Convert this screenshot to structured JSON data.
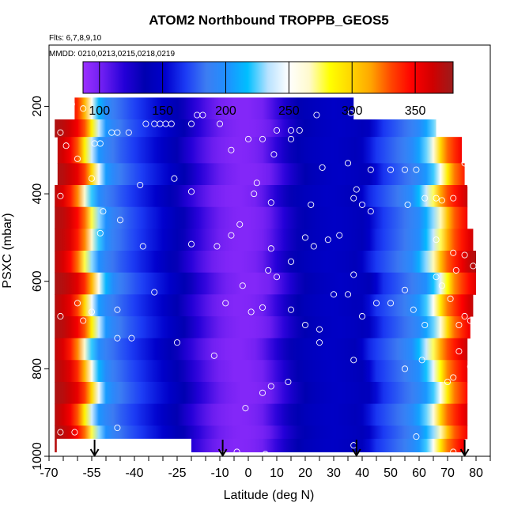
{
  "chart_data": {
    "type": "heatmap",
    "title": "ATOM2 Northbound TROPPB_GEOS5",
    "flights_note": "Flts: 6,7,8,9,10",
    "dates_note": "MMDD: 0210,0213,0215,0218,0219",
    "xlabel": "Latitude (deg N)",
    "ylabel": "PSXC (mbar)",
    "xlim": [
      -70,
      85
    ],
    "ylim": [
      1000,
      60
    ],
    "x_ticks": [
      -70,
      -55,
      -40,
      -25,
      -10,
      0,
      10,
      20,
      30,
      40,
      50,
      60,
      70,
      80
    ],
    "x_minor_step": 5,
    "y_ticks": [
      200,
      400,
      600,
      800,
      1000
    ],
    "colorbar": {
      "range": [
        87,
        380
      ],
      "ticks": [
        100,
        150,
        200,
        250,
        300,
        350
      ],
      "colors": [
        "#9b30ff",
        "#6a1df0",
        "#2400d8",
        "#0000b0",
        "#0000cd",
        "#1c3cf5",
        "#3d7df2",
        "#1e90ff",
        "#00bfff",
        "#b8e2ff",
        "#ffffff",
        "#fffacd",
        "#ffff00",
        "#ffd700",
        "#ffa500",
        "#ff4500",
        "#ff0000",
        "#d00000",
        "#9b1c1c"
      ]
    },
    "colorbar_segment_edges": [
      100,
      150,
      200,
      250,
      300,
      350
    ],
    "profile": {
      "lat": [
        -70,
        -66,
        -62,
        -58,
        -55,
        -52,
        -48,
        -44,
        -40,
        -36,
        -32,
        -28,
        -24,
        -20,
        -15,
        -10,
        -5,
        0,
        5,
        10,
        15,
        20,
        25,
        30,
        35,
        40,
        45,
        50,
        55,
        60,
        64,
        66,
        70,
        75,
        80,
        85
      ],
      "value": [
        375,
        370,
        355,
        320,
        255,
        205,
        188,
        178,
        170,
        162,
        155,
        145,
        135,
        122,
        110,
        100,
        95,
        95,
        100,
        115,
        130,
        140,
        145,
        148,
        145,
        140,
        165,
        175,
        185,
        200,
        230,
        260,
        320,
        345,
        372,
        378
      ]
    },
    "region": {
      "lat_min": -67,
      "lat_max": 80,
      "p_top": 180,
      "p_bottom": 990
    },
    "top_notch": {
      "lat_min": 35,
      "lat_max": 70,
      "p_top": 180,
      "p_bottom": 245
    },
    "white_gap": {
      "lat_min": -67,
      "lat_max": -20,
      "p_top": 960,
      "p_bottom": 1000
    },
    "bands_p": [
      180,
      230,
      270,
      330,
      380,
      430,
      480,
      530,
      580,
      630,
      680,
      730,
      780,
      830,
      880,
      930,
      960,
      990
    ],
    "band_offsets": [
      0,
      1.5,
      -1,
      2,
      -2,
      1,
      0.5,
      -1.5,
      2.5,
      -0.5,
      1.5,
      -2,
      0,
      2,
      -1,
      1,
      -0.5
    ],
    "band_lat_edges": [
      [
        -61,
        37
      ],
      [
        -68,
        66
      ],
      [
        -67,
        75
      ],
      [
        -67,
        76
      ],
      [
        -68,
        77
      ],
      [
        -68,
        77
      ],
      [
        -68,
        79
      ],
      [
        -68,
        80
      ],
      [
        -68,
        80
      ],
      [
        -68,
        79
      ],
      [
        -68,
        78
      ],
      [
        -68,
        77
      ],
      [
        -68,
        77
      ],
      [
        -68,
        77
      ],
      [
        -68,
        77
      ],
      [
        -68,
        77
      ],
      [
        -68,
        76
      ]
    ],
    "samples": [
      [
        -62,
        195
      ],
      [
        -58,
        205
      ],
      [
        -68,
        220
      ],
      [
        -70,
        240
      ],
      [
        -66,
        260
      ],
      [
        -64,
        290
      ],
      [
        -60,
        320
      ],
      [
        -54,
        285
      ],
      [
        -52,
        285
      ],
      [
        -48,
        260
      ],
      [
        -46,
        260
      ],
      [
        -42,
        260
      ],
      [
        -36,
        240
      ],
      [
        -33,
        240
      ],
      [
        -31,
        240
      ],
      [
        -29,
        240
      ],
      [
        -27,
        240
      ],
      [
        -20,
        240
      ],
      [
        -18,
        220
      ],
      [
        -16,
        220
      ],
      [
        -10,
        240
      ],
      [
        -6,
        300
      ],
      [
        0,
        275
      ],
      [
        5,
        275
      ],
      [
        9,
        310
      ],
      [
        10,
        255
      ],
      [
        15,
        255
      ],
      [
        15,
        275
      ],
      [
        18,
        255
      ],
      [
        24,
        220
      ],
      [
        36,
        215
      ],
      [
        -55,
        365
      ],
      [
        -66,
        405
      ],
      [
        -38,
        380
      ],
      [
        -26,
        365
      ],
      [
        -20,
        395
      ],
      [
        2,
        400
      ],
      [
        8,
        420
      ],
      [
        22,
        425
      ],
      [
        26,
        340
      ],
      [
        35,
        330
      ],
      [
        38,
        390
      ],
      [
        40,
        425
      ],
      [
        43,
        345
      ],
      [
        50,
        345
      ],
      [
        55,
        345
      ],
      [
        59,
        345
      ],
      [
        66,
        410
      ],
      [
        68,
        415
      ],
      [
        72,
        410
      ],
      [
        76,
        330
      ],
      [
        78,
        380
      ],
      [
        -51,
        440
      ],
      [
        -45,
        460
      ],
      [
        -52,
        490
      ],
      [
        -37,
        520
      ],
      [
        -20,
        515
      ],
      [
        -11,
        520
      ],
      [
        -6,
        495
      ],
      [
        -3,
        470
      ],
      [
        3,
        375
      ],
      [
        8,
        525
      ],
      [
        15,
        555
      ],
      [
        20,
        500
      ],
      [
        23,
        520
      ],
      [
        28,
        505
      ],
      [
        32,
        495
      ],
      [
        37,
        410
      ],
      [
        43,
        440
      ],
      [
        56,
        425
      ],
      [
        62,
        410
      ],
      [
        66,
        505
      ],
      [
        72,
        535
      ],
      [
        76,
        540
      ],
      [
        79,
        565
      ],
      [
        82,
        570
      ],
      [
        -55,
        670
      ],
      [
        -60,
        650
      ],
      [
        -66,
        680
      ],
      [
        -58,
        690
      ],
      [
        -46,
        665
      ],
      [
        -46,
        730
      ],
      [
        -41,
        730
      ],
      [
        -33,
        625
      ],
      [
        -25,
        740
      ],
      [
        -12,
        770
      ],
      [
        -2,
        610
      ],
      [
        -8,
        650
      ],
      [
        1,
        670
      ],
      [
        5,
        660
      ],
      [
        7,
        575
      ],
      [
        10,
        590
      ],
      [
        15,
        665
      ],
      [
        20,
        700
      ],
      [
        25,
        710
      ],
      [
        30,
        630
      ],
      [
        35,
        630
      ],
      [
        37,
        585
      ],
      [
        40,
        680
      ],
      [
        45,
        650
      ],
      [
        50,
        650
      ],
      [
        55,
        620
      ],
      [
        58,
        665
      ],
      [
        62,
        700
      ],
      [
        66,
        590
      ],
      [
        68,
        610
      ],
      [
        71,
        640
      ],
      [
        73,
        575
      ],
      [
        74,
        700
      ],
      [
        76,
        680
      ],
      [
        78,
        690
      ],
      [
        -1,
        890
      ],
      [
        5,
        855
      ],
      [
        8,
        840
      ],
      [
        14,
        830
      ],
      [
        25,
        740
      ],
      [
        37,
        780
      ],
      [
        55,
        800
      ],
      [
        61,
        780
      ],
      [
        70,
        830
      ],
      [
        72,
        820
      ],
      [
        74,
        760
      ],
      [
        78,
        795
      ],
      [
        -66,
        945
      ],
      [
        -61,
        945
      ],
      [
        -46,
        935
      ],
      [
        -23,
        995
      ],
      [
        -9,
        995
      ],
      [
        -4,
        990
      ],
      [
        6,
        995
      ],
      [
        22,
        1000
      ],
      [
        28,
        1000
      ],
      [
        37,
        975
      ],
      [
        47,
        1005
      ],
      [
        59,
        955
      ],
      [
        72,
        990
      ],
      [
        78,
        975
      ],
      [
        83,
        975
      ]
    ],
    "arrows_lat": [
      -54,
      -9,
      38,
      76
    ]
  }
}
